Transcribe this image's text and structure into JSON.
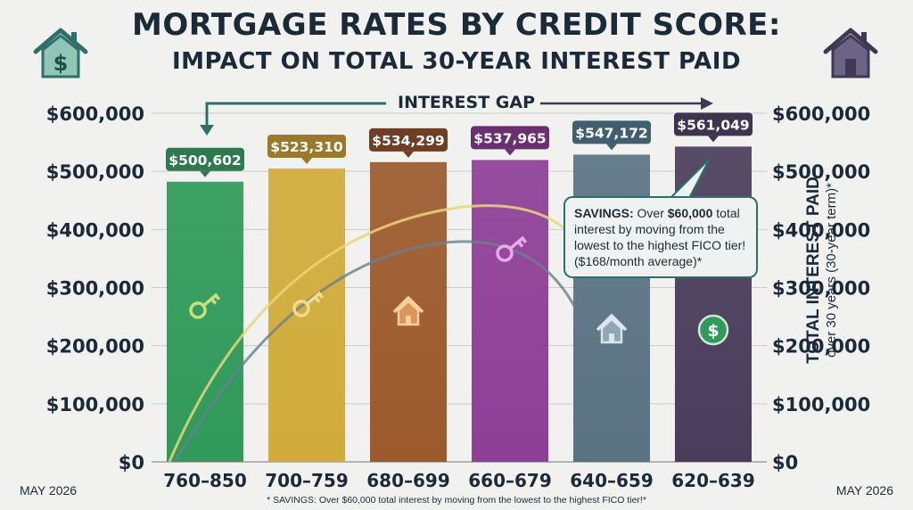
{
  "title_line1": "MORTGAGE RATES BY CREDIT SCORE:",
  "title_line2": "IMPACT ON TOTAL 30-YEAR INTEREST PAID",
  "date_left": "MAY 2026",
  "date_right": "MAY 2026",
  "footnote": "* SAVINGS: Over $60,000 total interest by moving from the lowest to the highest FICO tier!*",
  "gap_label": "INTEREST GAP",
  "callout": {
    "bold": "SAVINGS:",
    "text1": " Over ",
    "bold2": "$60,000",
    "text2": " total interest by moving from the lowest to the highest FICO tier! ($168/month average)*"
  },
  "y_axis_title": "TOTAL INTEREST PAID",
  "y_axis_subtitle": "over 30 years (30-year term)*",
  "icons": [
    "house-dollar-icon",
    "house-icon",
    "key-icon",
    "key-icon",
    "house-icon",
    "key-icon",
    "house-icon",
    "dollar-coin-icon"
  ],
  "chart_data": {
    "type": "bar",
    "categories": [
      "760–850",
      "700–759",
      "680–699",
      "660–679",
      "640–659",
      "620–639"
    ],
    "values": [
      500602,
      523310,
      534299,
      537965,
      547172,
      561049
    ],
    "value_labels": [
      "$500,602",
      "$523,310",
      "$534,299",
      "$537,965",
      "$547,172",
      "$561,049"
    ],
    "ylim": [
      0,
      600000
    ],
    "yticks": [
      0,
      100000,
      200000,
      300000,
      400000,
      500000,
      600000
    ],
    "ytick_labels": [
      "$0",
      "$100,000",
      "$200,000",
      "$300,000",
      "$400,000",
      "$500,000",
      "$600,000"
    ],
    "colors": [
      "#2f9a5a",
      "#d1ac3a",
      "#9c5a2c",
      "#8e3f96",
      "#5a7383",
      "#4a3d5c"
    ],
    "label_colors": [
      "#2e7a4e",
      "#9a7a2a",
      "#6e3f24",
      "#6a2f6e",
      "#3f5f6f",
      "#3e3450"
    ],
    "grid": true
  }
}
